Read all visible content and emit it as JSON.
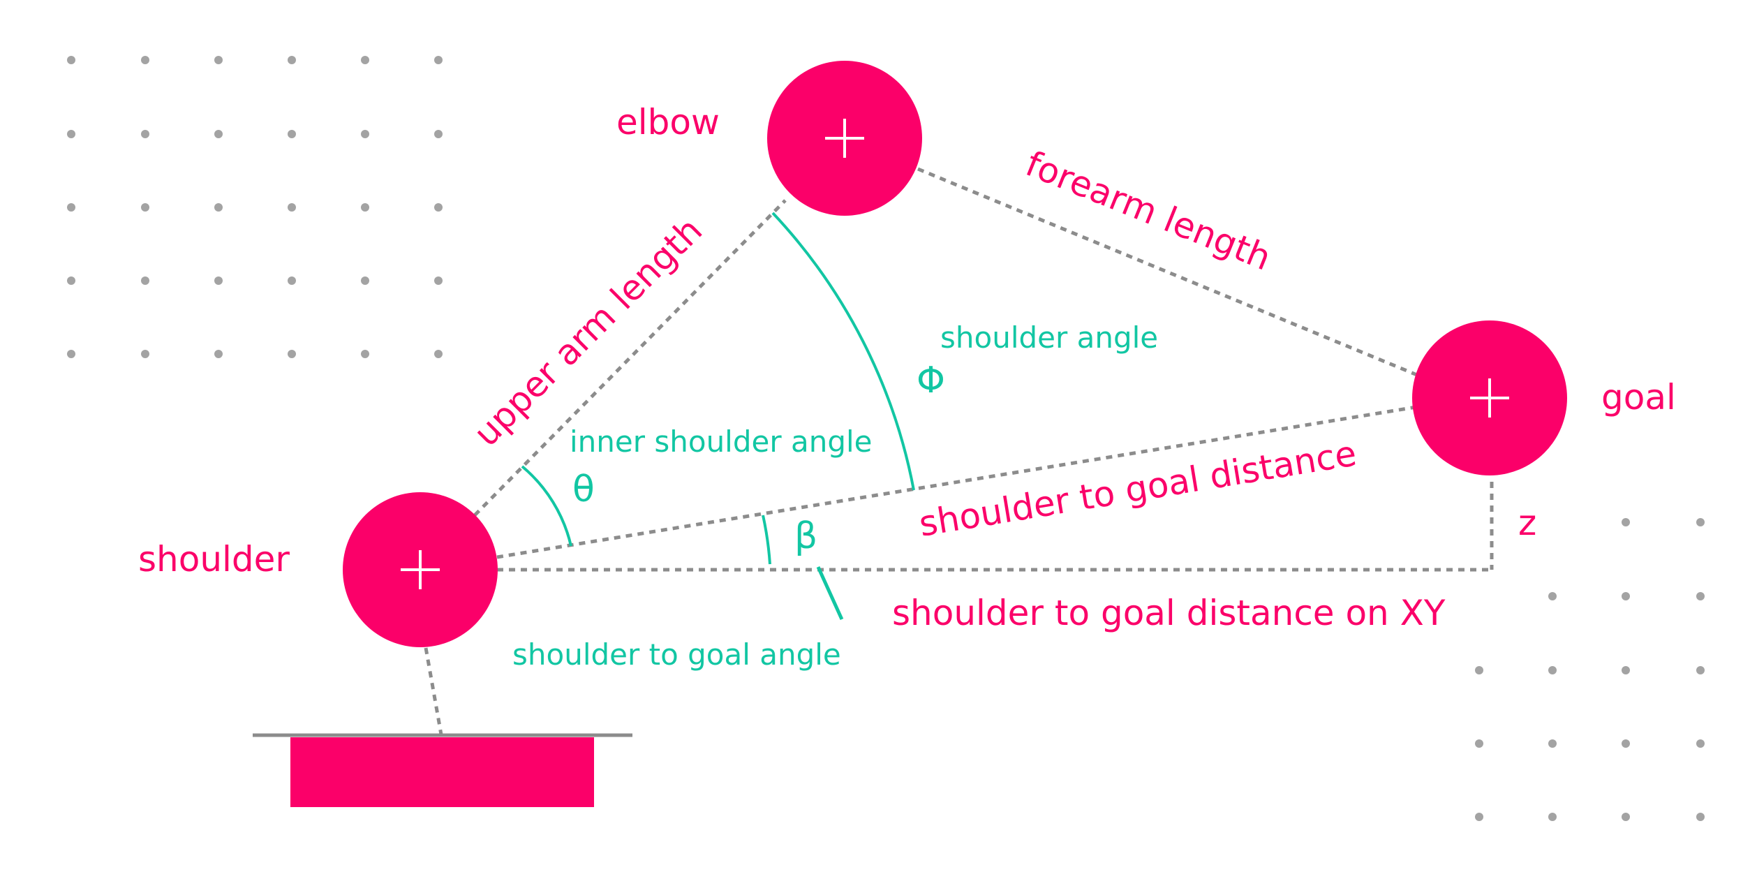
{
  "colors": {
    "joint": "#fb0069",
    "angle": "#12c6a3",
    "line": "#8c8c8c",
    "dot": "#a3a3a3",
    "background": "#ffffff"
  },
  "icons": {
    "joint_marker": "plus-icon"
  },
  "joints": {
    "shoulder": "shoulder",
    "elbow": "elbow",
    "goal": "goal"
  },
  "segments": {
    "upper_arm": "upper arm length",
    "forearm": "forearm length",
    "shoulder_goal": "shoulder to goal distance",
    "shoulder_goal_xy": "shoulder to goal distance on XY",
    "z": "z"
  },
  "angles": {
    "shoulder_angle": {
      "label": "shoulder angle",
      "symbol": "Φ"
    },
    "inner_shoulder_angle": {
      "label": "inner shoulder angle",
      "symbol": "θ"
    },
    "shoulder_goal_angle": {
      "label": "shoulder to goal angle",
      "symbol": "β"
    }
  }
}
